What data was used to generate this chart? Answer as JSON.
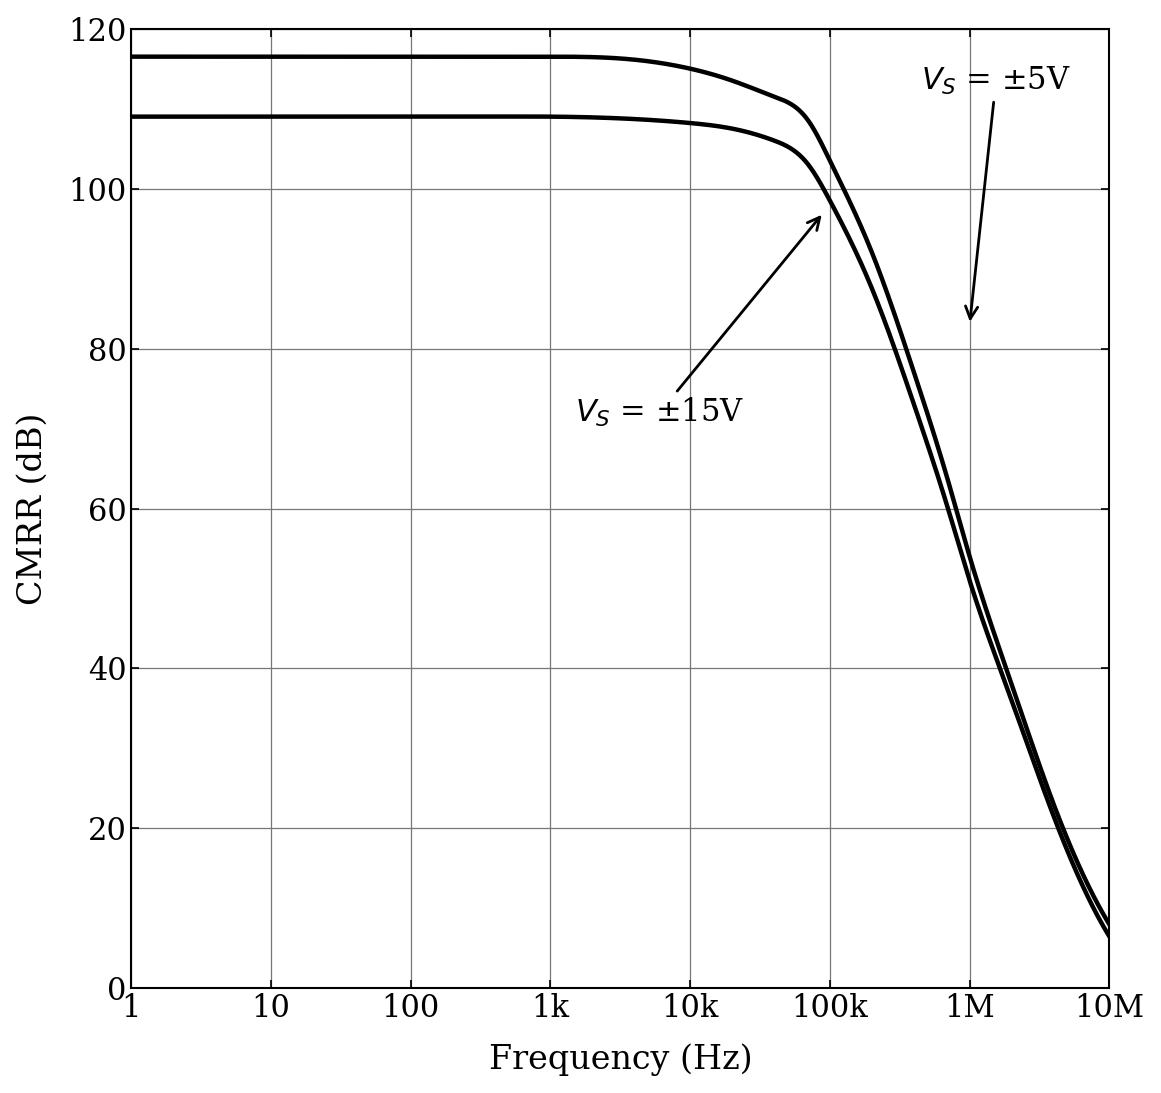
{
  "xlabel": "Frequency (Hz)",
  "ylabel": "CMRR (dB)",
  "ylim": [
    0,
    120
  ],
  "yticks": [
    0,
    20,
    40,
    60,
    80,
    100,
    120
  ],
  "xtick_positions": [
    1,
    10,
    100,
    1000,
    10000,
    100000,
    1000000,
    10000000
  ],
  "xtick_labels": [
    "1",
    "10",
    "100",
    "1k",
    "10k",
    "100k",
    "1M",
    "10M"
  ],
  "curve_5V": {
    "freqs": [
      1,
      3,
      10,
      30,
      100,
      300,
      1000,
      3000,
      10000,
      20000,
      40000,
      70000,
      100000,
      200000,
      400000,
      700000,
      1000000,
      2000000,
      4000000,
      7000000,
      10000000
    ],
    "cmrr": [
      116.5,
      116.5,
      116.5,
      116.5,
      116.5,
      116.5,
      116.5,
      116.3,
      115.0,
      113.5,
      111.5,
      108.5,
      103.5,
      92.0,
      77.0,
      63.5,
      54.0,
      38.0,
      23.0,
      13.0,
      8.0
    ]
  },
  "curve_15V": {
    "freqs": [
      1,
      3,
      10,
      30,
      100,
      300,
      1000,
      3000,
      10000,
      20000,
      40000,
      70000,
      100000,
      200000,
      400000,
      700000,
      1000000,
      2000000,
      4000000,
      7000000,
      10000000
    ],
    "cmrr": [
      109.0,
      109.0,
      109.0,
      109.0,
      109.0,
      109.0,
      109.0,
      108.8,
      108.2,
      107.5,
      106.0,
      103.0,
      98.5,
      87.5,
      73.0,
      60.0,
      51.0,
      36.0,
      21.5,
      11.5,
      6.5
    ]
  },
  "line_color": "#000000",
  "line_width": 3.2,
  "background_color": "#ffffff",
  "grid_color": "#777777",
  "font_size_ticks": 22,
  "font_size_labels": 24,
  "font_size_annotations": 22
}
